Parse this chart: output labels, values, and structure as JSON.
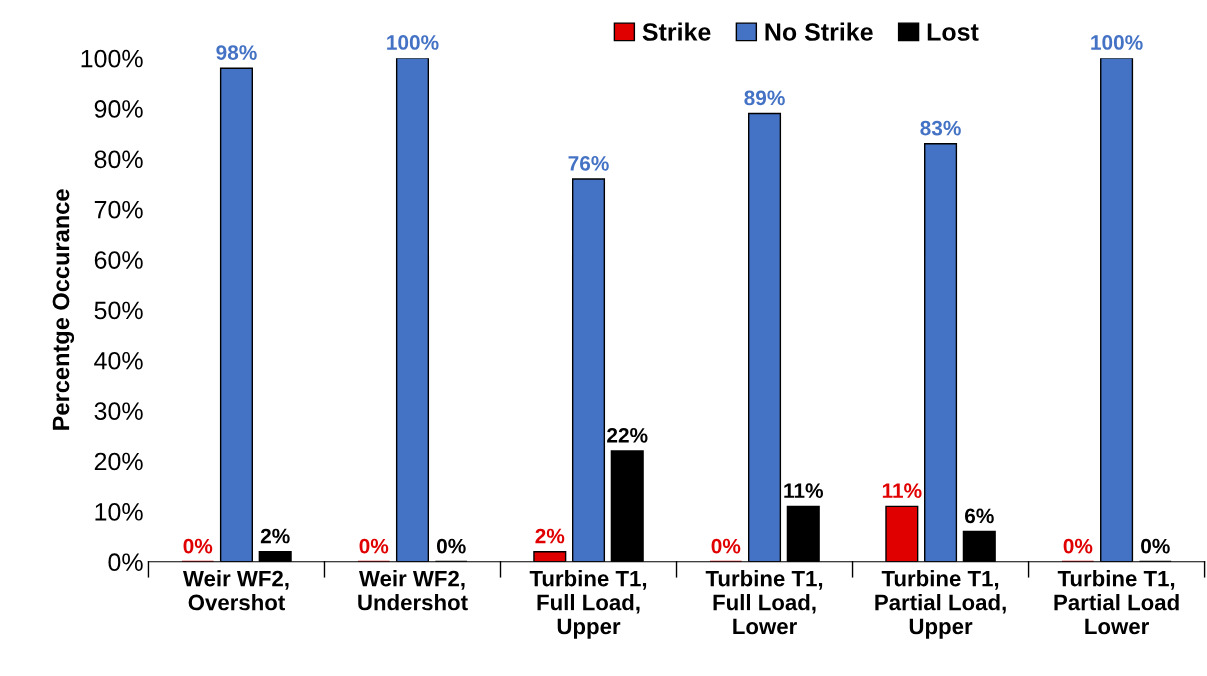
{
  "chart_data": {
    "type": "bar",
    "ylabel": "Percentge Occurance",
    "categories": [
      "Weir WF2,\nOvershot",
      "Weir WF2,\nUndershot",
      "Turbine T1,\nFull Load,\nUpper",
      "Turbine T1,\nFull Load,\nLower",
      "Turbine T1,\nPartial Load,\nUpper",
      "Turbine T1,\nPartial Load\nLower"
    ],
    "series": [
      {
        "name": "Strike",
        "color": "#e00000",
        "values": [
          0,
          0,
          2,
          0,
          11,
          0
        ],
        "value_labels": [
          "0%",
          "0%",
          "2%",
          "0%",
          "11%",
          "0%"
        ]
      },
      {
        "name": "No Strike",
        "color": "#4472c4",
        "values": [
          98,
          100,
          76,
          89,
          83,
          100
        ],
        "value_labels": [
          "98%",
          "100%",
          "76%",
          "89%",
          "83%",
          "100%"
        ]
      },
      {
        "name": "Lost",
        "color": "#000000",
        "values": [
          2,
          0,
          22,
          11,
          6,
          0
        ],
        "value_labels": [
          "2%",
          "0%",
          "22%",
          "11%",
          "6%",
          "0%"
        ]
      }
    ],
    "ylim": [
      0,
      100
    ],
    "yticks": [
      {
        "value": 0,
        "label": "0%"
      },
      {
        "value": 10,
        "label": "10%"
      },
      {
        "value": 20,
        "label": "20%"
      },
      {
        "value": 30,
        "label": "30%"
      },
      {
        "value": 40,
        "label": "40%"
      },
      {
        "value": 50,
        "label": "50%"
      },
      {
        "value": 60,
        "label": "60%"
      },
      {
        "value": 70,
        "label": "70%"
      },
      {
        "value": 80,
        "label": "80%"
      },
      {
        "value": 90,
        "label": "90%"
      },
      {
        "value": 100,
        "label": "100%"
      }
    ],
    "grid": false,
    "legend": "top"
  }
}
